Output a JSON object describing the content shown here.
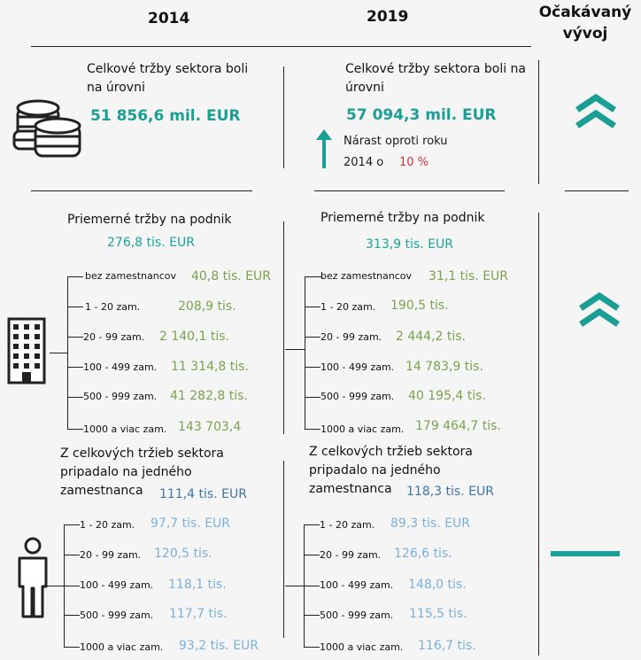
{
  "headers": {
    "col2014": "2014",
    "col2019": "2019",
    "trend": "Očakávaný vývoj"
  },
  "total": {
    "label_2014": "Celkové tržby sektora boli na úrovni",
    "value_2014": "51 856,6 mil. EUR",
    "label_2019": "Celkové tržby sektora boli na úrovni",
    "value_2019": "57 094,3 mil. EUR",
    "growth_label_1": "Nárast oproti roku",
    "growth_label_2": "2014 o",
    "growth_value": "10 %"
  },
  "avg": {
    "title": "Priemerné tržby na podnik",
    "value_2014": "276,8 tis. EUR",
    "value_2019": "313,9 tis. EUR",
    "rows_2014": [
      {
        "label": "bez zamestnancov",
        "value": "40,8 tis. EUR"
      },
      {
        "label": "1 - 20 zam.",
        "value": "208,9 tis."
      },
      {
        "label": "20 - 99 zam.",
        "value": "2 140,1 tis."
      },
      {
        "label": "100 - 499 zam.",
        "value": "11 314,8 tis."
      },
      {
        "label": "500 - 999 zam.",
        "value": "41 282,8 tis."
      },
      {
        "label": "1000 a viac zam.",
        "value": "143  703,4"
      }
    ],
    "rows_2019": [
      {
        "label": "bez zamestnancov",
        "value": "31,1 tis. EUR"
      },
      {
        "label": "1 - 20 zam.",
        "value": "190,5 tis."
      },
      {
        "label": "20 - 99 zam.",
        "value": "2 444,2 tis."
      },
      {
        "label": "100 - 499 zam.",
        "value": "14 783,9 tis."
      },
      {
        "label": "500 - 999 zam.",
        "value": "40 195,4 tis."
      },
      {
        "label": "1000 a viac zam.",
        "value": "179 464,7 tis."
      }
    ]
  },
  "emp": {
    "title_1": "Z celkových tržieb sektora",
    "title_2": "pripadalo na jedného",
    "title_3": "zamestnanca",
    "value_2014": "111,4 tis. EUR",
    "value_2019": "118,3 tis. EUR",
    "rows_2014": [
      {
        "label": "1 - 20 zam.",
        "value": "97,7 tis. EUR"
      },
      {
        "label": "20 - 99 zam.",
        "value": "120,5 tis."
      },
      {
        "label": "100 - 499 zam.",
        "value": "118,1 tis."
      },
      {
        "label": "500 - 999 zam.",
        "value": "117,7 tis."
      },
      {
        "label": "1000 a viac zam.",
        "value": "93,2 tis. EUR"
      }
    ],
    "rows_2019": [
      {
        "label": "1 - 20 zam.",
        "value": "89,3 tis. EUR"
      },
      {
        "label": "20 - 99 zam.",
        "value": "126,6 tis."
      },
      {
        "label": "100 - 499 zam.",
        "value": "148,0 tis."
      },
      {
        "label": "500 - 999 zam.",
        "value": "115,5 tis."
      },
      {
        "label": "1000 a viac zam.",
        "value": "116,7 tis."
      }
    ]
  },
  "colors": {
    "teal": "#1a9e96",
    "green": "#7aa14b",
    "blue": "#3f73a8",
    "lightblue": "#7bb0db",
    "red": "#d0323a"
  }
}
